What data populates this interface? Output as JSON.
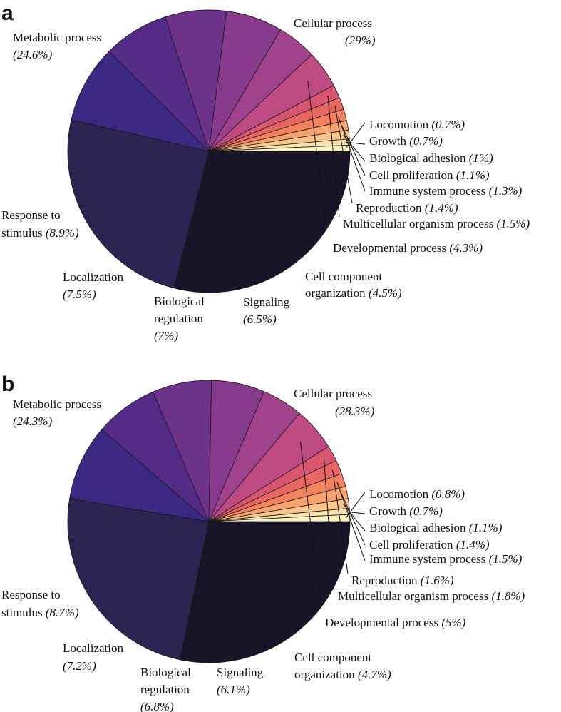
{
  "chart_data": [
    {
      "type": "pie",
      "panel": "a",
      "start": "3 o'clock, clockwise",
      "slices": [
        {
          "name": "Cellular process",
          "value": 29,
          "pct_label": "(29%)",
          "color": "#191428"
        },
        {
          "name": "Metabolic process",
          "value": 24.6,
          "pct_label": "(24.6%)",
          "color": "#2b2350"
        },
        {
          "name": "Response to stimulus",
          "value": 8.9,
          "pct_label": "(8.9%)",
          "color": "#3b2883"
        },
        {
          "name": "Localization",
          "value": 7.5,
          "pct_label": "(7.5%)",
          "color": "#542b87"
        },
        {
          "name": "Biological regulation",
          "value": 7,
          "pct_label": "(7%)",
          "color": "#6d3289"
        },
        {
          "name": "Signaling",
          "value": 6.5,
          "pct_label": "(6.5%)",
          "color": "#853a8b"
        },
        {
          "name": "Cell component organization",
          "value": 4.5,
          "pct_label": "(4.5%)",
          "color": "#a0428b"
        },
        {
          "name": "Developmental process",
          "value": 4.3,
          "pct_label": "(4.3%)",
          "color": "#bd4a82"
        },
        {
          "name": "Multicellular organism process",
          "value": 1.5,
          "pct_label": "(1.5%)",
          "color": "#d8556f"
        },
        {
          "name": "Reproduction",
          "value": 1.4,
          "pct_label": "(1.4%)",
          "color": "#ea6662"
        },
        {
          "name": "Immune system process",
          "value": 1.3,
          "pct_label": "(1.3%)",
          "color": "#f5825e"
        },
        {
          "name": "Cell proliferation",
          "value": 1.1,
          "pct_label": "(1.1%)",
          "color": "#f9a36f"
        },
        {
          "name": "Biological adhesion",
          "value": 1,
          "pct_label": "(1%)",
          "color": "#fbc58c"
        },
        {
          "name": "Growth",
          "value": 0.7,
          "pct_label": "(0.7%)",
          "color": "#fce2ad"
        },
        {
          "name": "Locomotion",
          "value": 0.7,
          "pct_label": "(0.7%)",
          "color": "#fcf6c4"
        }
      ]
    },
    {
      "type": "pie",
      "panel": "b",
      "start": "3 o'clock, clockwise",
      "slices": [
        {
          "name": "Cellular process",
          "value": 28.3,
          "pct_label": "(28.3%)",
          "color": "#191428"
        },
        {
          "name": "Metabolic process",
          "value": 24.3,
          "pct_label": "(24.3%)",
          "color": "#2b2350"
        },
        {
          "name": "Response to stimulus",
          "value": 8.7,
          "pct_label": "(8.7%)",
          "color": "#3b2883"
        },
        {
          "name": "Localization",
          "value": 7.2,
          "pct_label": "(7.2%)",
          "color": "#542b87"
        },
        {
          "name": "Biological regulation",
          "value": 6.8,
          "pct_label": "(6.8%)",
          "color": "#6d3289"
        },
        {
          "name": "Signaling",
          "value": 6.1,
          "pct_label": "(6.1%)",
          "color": "#853a8b"
        },
        {
          "name": "Cell component organization",
          "value": 4.7,
          "pct_label": "(4.7%)",
          "color": "#a0428b"
        },
        {
          "name": "Developmental process",
          "value": 5,
          "pct_label": "(5%)",
          "color": "#bd4a82"
        },
        {
          "name": "Multicellular organism process",
          "value": 1.8,
          "pct_label": "(1.8%)",
          "color": "#d8556f"
        },
        {
          "name": "Reproduction",
          "value": 1.6,
          "pct_label": "(1.6%)",
          "color": "#ea6662"
        },
        {
          "name": "Immune system process",
          "value": 1.5,
          "pct_label": "(1.5%)",
          "color": "#f5825e"
        },
        {
          "name": "Cell proliferation",
          "value": 1.4,
          "pct_label": "(1.4%)",
          "color": "#f9a36f"
        },
        {
          "name": "Biological adhesion",
          "value": 1.1,
          "pct_label": "(1.1%)",
          "color": "#fbc58c"
        },
        {
          "name": "Growth",
          "value": 0.7,
          "pct_label": "(0.7%)",
          "color": "#fce2ad"
        },
        {
          "name": "Locomotion",
          "value": 0.8,
          "pct_label": "(0.8%)",
          "color": "#fcf6c4"
        }
      ]
    }
  ]
}
